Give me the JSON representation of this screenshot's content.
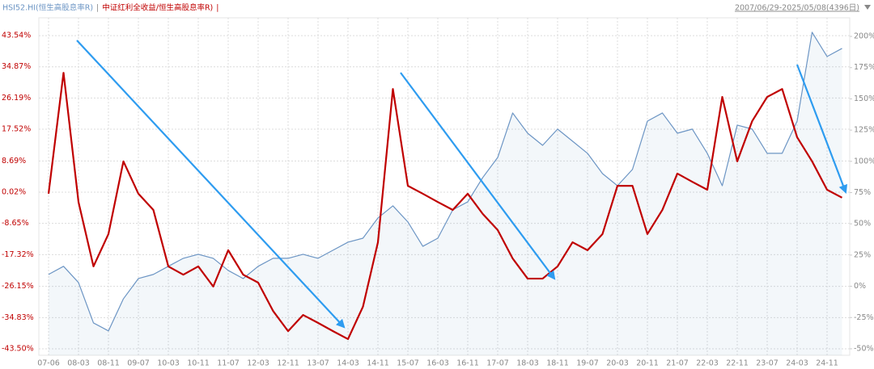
{
  "chart_data": {
    "type": "line",
    "separator": "|",
    "subtitle": "2007/06/29-2025/05/08(4396日)",
    "categories": [
      "07-06",
      null,
      "08-03",
      null,
      "08-11",
      null,
      "09-07",
      null,
      "10-03",
      null,
      "10-11",
      null,
      "11-07",
      null,
      "12-03",
      null,
      "12-11",
      null,
      "13-07",
      null,
      "14-03",
      null,
      "14-11",
      null,
      "15-07",
      null,
      "16-03",
      null,
      "16-11",
      null,
      "17-07",
      null,
      "18-03",
      null,
      "18-11",
      null,
      "19-07",
      null,
      "20-03",
      null,
      "20-11",
      null,
      "21-07",
      null,
      "22-03",
      null,
      "22-11",
      null,
      "23-07",
      null,
      "24-03",
      null,
      "24-11",
      null
    ],
    "series": [
      {
        "name": "HSI52.HI(恒生高股息率R)",
        "color": "#6c95c4",
        "axis": "y2",
        "values": [
          9.5,
          16,
          3,
          -29.3,
          -35.7,
          -10,
          6.2,
          9.5,
          16,
          22.4,
          25.6,
          22.4,
          12.7,
          6.2,
          16,
          22.4,
          22.4,
          25.6,
          22.4,
          28.9,
          35.3,
          38.5,
          54.7,
          64.4,
          51.5,
          32,
          38.5,
          61.2,
          67.6,
          87,
          103.1,
          138.7,
          122.5,
          112.8,
          125.8,
          116.1,
          106.4,
          90.2,
          80.5,
          93.5,
          132.2,
          138.7,
          122.5,
          125.8,
          106.4,
          80.5,
          129,
          125.8,
          106.4,
          106.4,
          132.2,
          203.3,
          183.9,
          190.4
        ]
      },
      {
        "name": "中证红利全收益/恒生高股息率R)",
        "color": "#c00000",
        "values": [
          -0.4,
          33.2,
          -2.7,
          -20.6,
          -11.6,
          8.6,
          -0.4,
          -4.9,
          -20.6,
          -22.9,
          -20.6,
          -26.2,
          -16.1,
          -22.9,
          -25.1,
          -33,
          -38.6,
          -34.1,
          -36.3,
          -38.6,
          -40.8,
          -31.8,
          -13.9,
          28.7,
          1.8,
          -0.4,
          -2.7,
          -4.9,
          -0.4,
          -6,
          -10.5,
          -18.4,
          -24,
          -24,
          -20.6,
          -13.9,
          -16.1,
          -11.6,
          1.8,
          1.8,
          -11.6,
          -4.9,
          5.2,
          2.9,
          0.7,
          26.5,
          8.6,
          19.8,
          26.5,
          28.7,
          15.3,
          8.6,
          0.7,
          -1.5
        ]
      }
    ],
    "ylim": [
      -45.3,
      48.5
    ],
    "yticks": [
      {
        "value": 43.54,
        "label": "43.54%"
      },
      {
        "value": 34.87,
        "label": "34.87%"
      },
      {
        "value": 26.19,
        "label": "26.19%"
      },
      {
        "value": 17.52,
        "label": "17.52%"
      },
      {
        "value": 8.69,
        "label": "8.69%"
      },
      {
        "value": 0.02,
        "label": "0.02%"
      },
      {
        "value": -8.65,
        "label": "-8.65%"
      },
      {
        "value": -17.32,
        "label": "-17.32%"
      },
      {
        "value": -26.15,
        "label": "-26.15%"
      },
      {
        "value": -34.83,
        "label": "-34.83%"
      },
      {
        "value": -43.5,
        "label": "-43.50%"
      }
    ],
    "y2lim": [
      -55.2,
      214.9
    ],
    "y2ticks": [
      {
        "value": 200,
        "label": "200%"
      },
      {
        "value": 175,
        "label": "175%"
      },
      {
        "value": 150,
        "label": "150%"
      },
      {
        "value": 125,
        "label": "125%"
      },
      {
        "value": 100,
        "label": "100%"
      },
      {
        "value": 75,
        "label": "75%"
      },
      {
        "value": 50,
        "label": "50%"
      },
      {
        "value": 25,
        "label": "25%"
      },
      {
        "value": 0,
        "label": "0%"
      },
      {
        "value": -25,
        "label": "-25%"
      },
      {
        "value": -50,
        "label": "-50%"
      }
    ],
    "grid": true
  }
}
